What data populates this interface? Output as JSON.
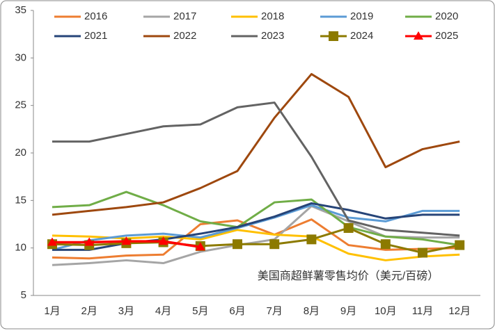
{
  "chart_data": {
    "type": "line",
    "categories": [
      "1月",
      "2月",
      "3月",
      "4月",
      "5月",
      "6月",
      "7月",
      "8月",
      "9月",
      "10月",
      "11月",
      "12月"
    ],
    "ylim": [
      5,
      35
    ],
    "yticks": [
      5,
      10,
      15,
      20,
      25,
      30,
      35
    ],
    "grid": false,
    "annotation": "美国商超鲜薯零售均价（美元/百磅）",
    "series": [
      {
        "name": "2016",
        "color": "#ED7D31",
        "values": [
          9.0,
          8.9,
          9.2,
          9.3,
          12.5,
          12.9,
          11.4,
          13.0,
          10.3,
          9.8,
          9.9,
          10.0
        ]
      },
      {
        "name": "2017",
        "color": "#A5A5A5",
        "values": [
          8.2,
          8.4,
          8.7,
          8.4,
          9.6,
          10.3,
          10.9,
          14.4,
          12.8,
          11.2,
          11.1,
          11.1
        ]
      },
      {
        "name": "2018",
        "color": "#FFC000",
        "values": [
          11.3,
          11.2,
          11.0,
          11.2,
          10.9,
          11.9,
          11.4,
          11.2,
          9.4,
          8.7,
          9.1,
          9.3
        ]
      },
      {
        "name": "2019",
        "color": "#5B9BD5",
        "values": [
          9.8,
          10.8,
          11.3,
          11.5,
          11.1,
          12.1,
          13.2,
          14.5,
          13.2,
          12.8,
          13.9,
          13.9
        ]
      },
      {
        "name": "2020",
        "color": "#70AD47",
        "values": [
          14.3,
          14.5,
          15.9,
          14.5,
          12.8,
          12.2,
          14.8,
          15.1,
          12.2,
          11.2,
          10.9,
          10.3
        ]
      },
      {
        "name": "2021",
        "color": "#264478",
        "values": [
          9.8,
          9.8,
          10.5,
          10.9,
          11.5,
          12.2,
          13.3,
          14.7,
          14.0,
          13.1,
          13.5,
          13.5
        ]
      },
      {
        "name": "2022",
        "color": "#9E480E",
        "values": [
          13.5,
          13.9,
          14.3,
          14.8,
          16.3,
          18.1,
          23.7,
          28.3,
          25.9,
          18.5,
          20.4,
          21.2
        ]
      },
      {
        "name": "2023",
        "color": "#636363",
        "values": [
          21.2,
          21.2,
          22.0,
          22.8,
          23.0,
          24.8,
          25.3,
          19.6,
          12.9,
          11.9,
          11.6,
          11.3
        ]
      },
      {
        "name": "2024",
        "color": "#8C7A00",
        "marker": "square",
        "values": [
          10.4,
          10.3,
          10.5,
          10.6,
          10.2,
          10.4,
          10.4,
          10.9,
          12.1,
          10.4,
          9.5,
          10.3
        ]
      },
      {
        "name": "2025",
        "color": "#FF0000",
        "marker": "triangle",
        "values": [
          10.6,
          10.6,
          10.7,
          10.7,
          10.1,
          null,
          null,
          null,
          null,
          null,
          null,
          null
        ]
      }
    ]
  }
}
